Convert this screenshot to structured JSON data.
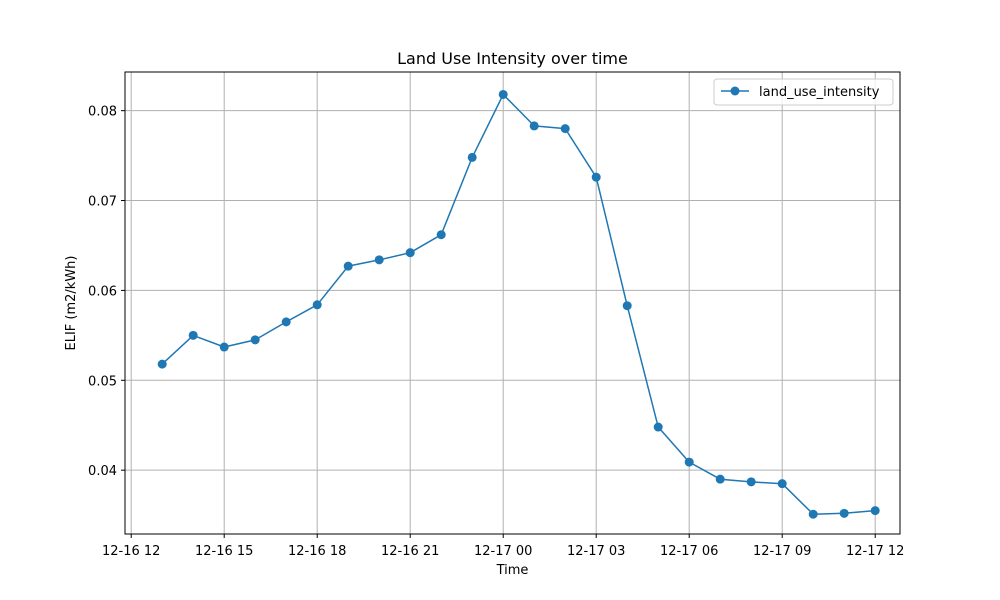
{
  "chart_data": {
    "type": "line",
    "title": "Land Use Intensity over time",
    "xlabel": "Time",
    "ylabel": "ELIF (m2/kWh)",
    "x_ticks": [
      {
        "hour": -1,
        "label": "12-16 12"
      },
      {
        "hour": 2,
        "label": "12-16 15"
      },
      {
        "hour": 5,
        "label": "12-16 18"
      },
      {
        "hour": 8,
        "label": "12-16 21"
      },
      {
        "hour": 11,
        "label": "12-17 00"
      },
      {
        "hour": 14,
        "label": "12-17 03"
      },
      {
        "hour": 17,
        "label": "12-17 06"
      },
      {
        "hour": 20,
        "label": "12-17 09"
      },
      {
        "hour": 23,
        "label": "12-17 12"
      }
    ],
    "y_ticks": [
      {
        "value": 0.04,
        "label": "0.04"
      },
      {
        "value": 0.05,
        "label": "0.05"
      },
      {
        "value": 0.06,
        "label": "0.06"
      },
      {
        "value": 0.07,
        "label": "0.07"
      },
      {
        "value": 0.08,
        "label": "0.08"
      }
    ],
    "xlim_hours": [
      -1.2,
      23.8
    ],
    "ylim": [
      0.0329,
      0.0843
    ],
    "grid": true,
    "legend": "top-right",
    "series": [
      {
        "name": "land_use_intensity",
        "color": "#1f77b4",
        "marker": "circle",
        "x_labels": [
          "12-16 13:00",
          "12-16 14:00",
          "12-16 15:00",
          "12-16 16:00",
          "12-16 17:00",
          "12-16 18:00",
          "12-16 19:00",
          "12-16 20:00",
          "12-16 21:00",
          "12-16 22:00",
          "12-16 23:00",
          "12-17 00:00",
          "12-17 01:00",
          "12-17 02:00",
          "12-17 03:00",
          "12-17 04:00",
          "12-17 05:00",
          "12-17 06:00",
          "12-17 07:00",
          "12-17 08:00",
          "12-17 09:00",
          "12-17 10:00",
          "12-17 11:00",
          "12-17 12:00"
        ],
        "x_hours": [
          0,
          1,
          2,
          3,
          4,
          5,
          6,
          7,
          8,
          9,
          10,
          11,
          12,
          13,
          14,
          15,
          16,
          17,
          18,
          19,
          20,
          21,
          22,
          23
        ],
        "values": [
          0.0518,
          0.055,
          0.0537,
          0.0545,
          0.0565,
          0.0584,
          0.0627,
          0.0634,
          0.0642,
          0.0662,
          0.0748,
          0.0818,
          0.0783,
          0.078,
          0.0726,
          0.0583,
          0.0448,
          0.0409,
          0.039,
          0.0387,
          0.0385,
          0.0351,
          0.0352,
          0.0355
        ]
      }
    ]
  }
}
